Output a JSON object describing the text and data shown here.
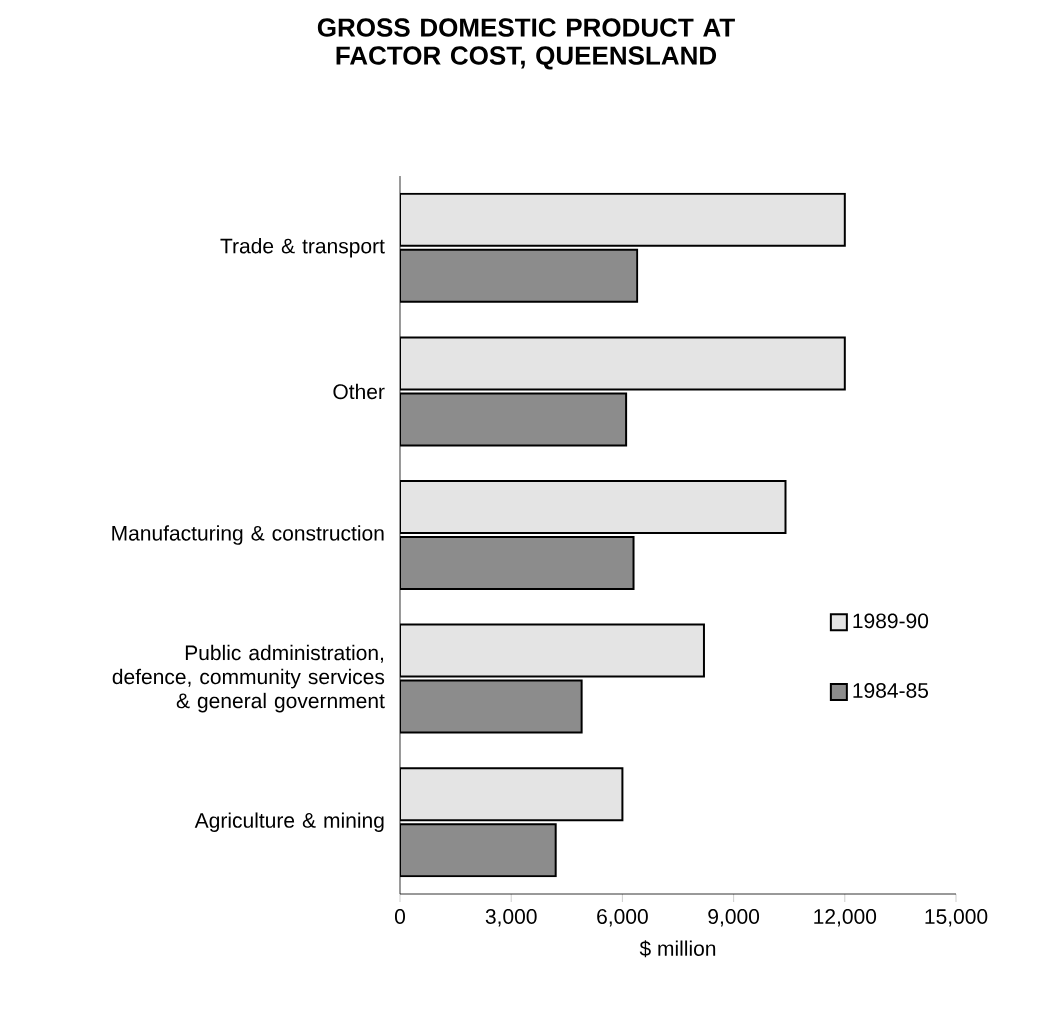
{
  "chart_data": {
    "type": "bar",
    "orientation": "horizontal",
    "title": "GROSS DOMESTIC PRODUCT AT FACTOR COST, QUEENSLAND",
    "xlabel": "$ million",
    "categories": [
      "Trade & transport",
      "Other",
      "Manufacturing & construction",
      "Public administration, defence, community services & general government",
      "Agriculture & mining"
    ],
    "series": [
      {
        "name": "1989-90",
        "color": "#e4e4e4",
        "values": [
          12000,
          12000,
          10400,
          8200,
          6000
        ]
      },
      {
        "name": "1984-85",
        "color": "#8c8c8c",
        "values": [
          6400,
          6100,
          6300,
          4900,
          4200
        ]
      }
    ],
    "xlim": [
      0,
      15000
    ],
    "xticks": [
      {
        "value": 0,
        "label": "0"
      },
      {
        "value": 3000,
        "label": "3,000"
      },
      {
        "value": 6000,
        "label": "6,000"
      },
      {
        "value": 9000,
        "label": "9,000"
      },
      {
        "value": 12000,
        "label": "12,000"
      },
      {
        "value": 15000,
        "label": "15,000"
      }
    ],
    "legend": "right",
    "grid": false
  }
}
